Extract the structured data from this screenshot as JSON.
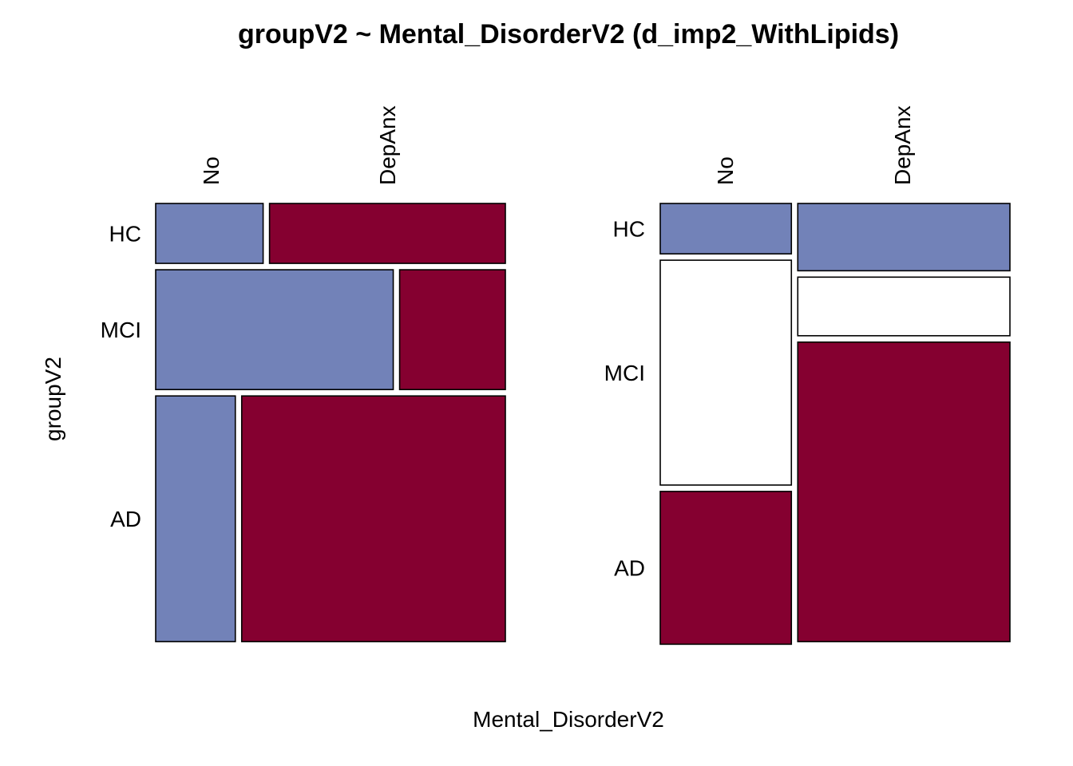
{
  "chart_data": {
    "type": "mosaic",
    "title": "groupV2 ~ Mental_DisorderV2 (d_imp2_WithLipids)",
    "xlabel": "Mental_DisorderV2",
    "ylabel": "groupV2",
    "colors": {
      "blue": "#7282b8",
      "red": "#850030",
      "white": "#ffffff"
    },
    "panels": [
      {
        "columns": [
          "No",
          "DepAnx"
        ],
        "rows": [
          {
            "label": "HC",
            "share": 0.138,
            "split": [
              0.313,
              0.687
            ],
            "fills": [
              "blue",
              "red"
            ]
          },
          {
            "label": "MCI",
            "share": 0.276,
            "split": [
              0.692,
              0.308
            ],
            "fills": [
              "blue",
              "red"
            ]
          },
          {
            "label": "AD",
            "share": 0.566,
            "split": [
              0.232,
              0.768
            ],
            "fills": [
              "blue",
              "red"
            ]
          }
        ]
      },
      {
        "columns": [
          "No",
          "DepAnx"
        ],
        "rows": [
          {
            "label": "HC",
            "note": "stacked within column"
          },
          {
            "label": "MCI"
          },
          {
            "label": "AD"
          }
        ],
        "column_shares": [
          0.382,
          0.618
        ],
        "stacks": [
          {
            "column": "No",
            "segments": [
              {
                "row": "HC",
                "share": 0.116,
                "fill": "blue"
              },
              {
                "row": "MCI",
                "share": 0.518,
                "fill": "white"
              },
              {
                "row": "AD",
                "share": 0.352,
                "fill": "red"
              }
            ]
          },
          {
            "column": "DepAnx",
            "segments": [
              {
                "row": "HC",
                "share": 0.155,
                "fill": "blue"
              },
              {
                "row": "MCI",
                "share": 0.135,
                "fill": "white"
              },
              {
                "row": "AD",
                "share": 0.69,
                "fill": "red"
              }
            ]
          }
        ]
      }
    ]
  }
}
